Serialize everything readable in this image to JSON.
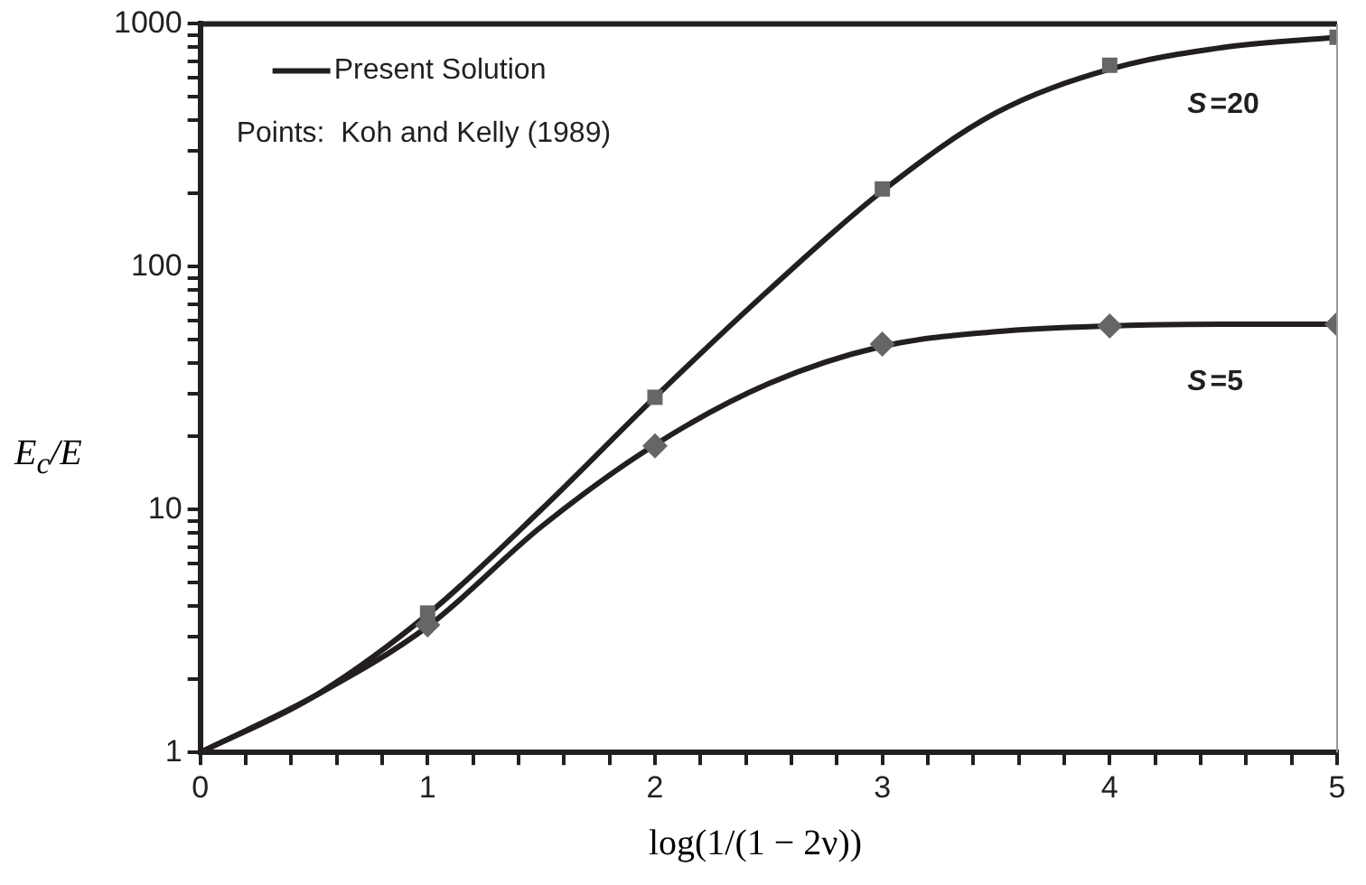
{
  "chart_data": {
    "type": "line",
    "xlabel": "log(1/(1 − 2ν))",
    "ylabel": "E$_{c}$/E",
    "log": "y",
    "grid": false,
    "legend": "top left",
    "line_style": "solid",
    "xlim": [
      0,
      5
    ],
    "ylim": [
      1,
      1000
    ],
    "xticks": [
      0,
      {
        "value": 0.2,
        "label": null
      },
      {
        "value": 0.4,
        "label": null
      },
      {
        "value": 0.6,
        "label": null
      },
      {
        "value": 0.8,
        "label": null
      },
      1,
      {
        "value": 1.2,
        "label": null
      },
      {
        "value": 1.4,
        "label": null
      },
      {
        "value": 1.6,
        "label": null
      },
      {
        "value": 1.8,
        "label": null
      },
      2,
      {
        "value": 2.2,
        "label": null
      },
      {
        "value": 2.4,
        "label": null
      },
      {
        "value": 2.6,
        "label": null
      },
      {
        "value": 2.8,
        "label": null
      },
      3,
      {
        "value": 3.2,
        "label": null
      },
      {
        "value": 3.4,
        "label": null
      },
      {
        "value": 3.6,
        "label": null
      },
      {
        "value": 3.8,
        "label": null
      },
      4,
      {
        "value": 4.2,
        "label": null
      },
      {
        "value": 4.4,
        "label": null
      },
      {
        "value": 4.6,
        "label": null
      },
      {
        "value": 4.8,
        "label": null
      },
      5
    ],
    "yticks": [
      1,
      {
        "value": 2,
        "label": null
      },
      {
        "value": 3,
        "label": null
      },
      {
        "value": 4,
        "label": null
      },
      {
        "value": 5,
        "label": null
      },
      {
        "value": 6,
        "label": null
      },
      {
        "value": 7,
        "label": null
      },
      {
        "value": 8,
        "label": null
      },
      {
        "value": 9,
        "label": null
      },
      10,
      {
        "value": 20,
        "label": null
      },
      {
        "value": 30,
        "label": null
      },
      {
        "value": 40,
        "label": null
      },
      {
        "value": 50,
        "label": null
      },
      {
        "value": 60,
        "label": null
      },
      {
        "value": 70,
        "label": null
      },
      {
        "value": 80,
        "label": null
      },
      {
        "value": 90,
        "label": null
      },
      100,
      {
        "value": 200,
        "label": null
      },
      {
        "value": 300,
        "label": null
      },
      {
        "value": 400,
        "label": null
      },
      {
        "value": 500,
        "label": null
      },
      {
        "value": 600,
        "label": null
      },
      {
        "value": 700,
        "label": null
      },
      {
        "value": 800,
        "label": null
      },
      {
        "value": 900,
        "label": null
      },
      1000
    ],
    "series": [
      {
        "name": "Present Solution",
        "marker": "none",
        "color": "#231f20",
        "x": [
          0,
          0.5,
          1,
          1.5,
          2,
          2.5,
          3,
          3.5,
          4,
          4.5,
          5
        ],
        "values": [
          1,
          1.7,
          3.7,
          10,
          29,
          80,
          205,
          430,
          650,
          800,
          880
        ]
      },
      {
        "marker": "none",
        "color": "#231f20",
        "x": [
          0,
          0.5,
          1,
          1.5,
          2,
          2.5,
          3,
          3.5,
          4,
          4.5,
          5
        ],
        "values": [
          1,
          1.7,
          3.3,
          8.5,
          18.5,
          33,
          47,
          54,
          57,
          58,
          58
        ]
      },
      {
        "type": "scatter",
        "marker": "square",
        "color": "#666666",
        "x": [
          1,
          2,
          3,
          4,
          5
        ],
        "values": [
          3.75,
          29,
          209,
          675,
          880
        ]
      },
      {
        "type": "scatter",
        "marker": "diamond",
        "color": "#666666",
        "x": [
          1,
          2,
          3,
          4,
          5
        ],
        "values": [
          3.35,
          18.3,
          48,
          57,
          58
        ]
      }
    ],
    "annotations": [
      "Points:  Koh and Kelly (1989)",
      "S=20",
      "S=5"
    ]
  }
}
